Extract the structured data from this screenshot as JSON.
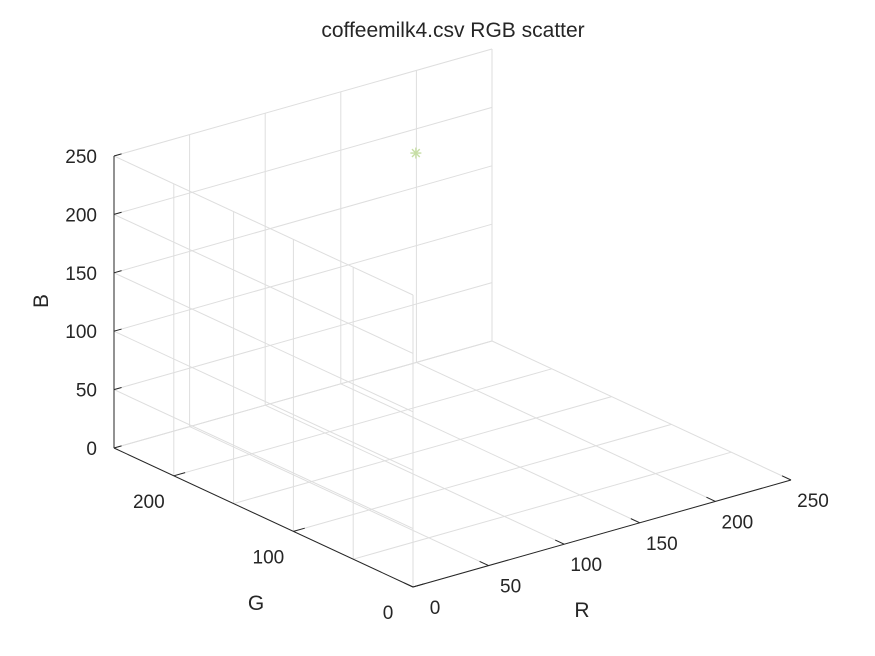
{
  "chart_data": {
    "type": "scatter",
    "title": "coffeemilk4.csv RGB scatter",
    "xlabel": "R",
    "ylabel": "G",
    "zlabel": "B",
    "xlim": [
      0,
      250
    ],
    "ylim": [
      0,
      250
    ],
    "zlim": [
      0,
      250
    ],
    "xticks": [
      "0",
      "50",
      "100",
      "150",
      "200",
      "250"
    ],
    "yticks": [
      "0",
      "100",
      "200"
    ],
    "zticks": [
      "0",
      "50",
      "100",
      "150",
      "200",
      "250"
    ],
    "grid": true,
    "marker": "*",
    "points": [
      {
        "x": 168,
        "y": 210,
        "z": 210,
        "color": "#c7dea5"
      }
    ]
  }
}
